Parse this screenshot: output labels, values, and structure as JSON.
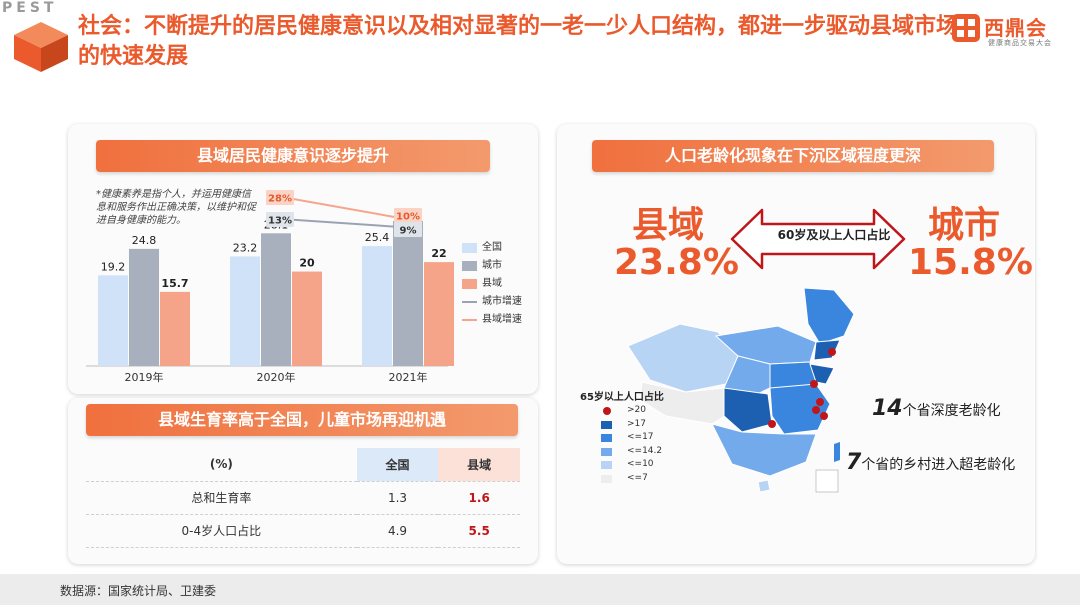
{
  "header": {
    "pest": "PEST",
    "title": "社会：不断提升的居民健康意识以及相对显著的一老一少人口结构，都进一步驱动县域市场的快速发展"
  },
  "logo": {
    "name": "西鼎会",
    "sub": "健康商品交易大会"
  },
  "health_panel": {
    "banner": "县域居民健康意识逐步提升",
    "note": "*健康素养是指个人，并运用健康信息和服务作出正确决策，以维护和促进自身健康的能力。"
  },
  "fertility_panel": {
    "banner": "县域生育率高于全国，儿童市场再迎机遇",
    "table": {
      "headers": [
        "(%)",
        "全国",
        "县域"
      ],
      "rows": [
        [
          "总和生育率",
          "1.3",
          "1.6"
        ],
        [
          "0-4岁人口占比",
          "4.9",
          "5.5"
        ]
      ]
    }
  },
  "aging_panel": {
    "banner": "人口老龄化现象在下沉区域程度更深",
    "county_label": "县域",
    "county_value": "23.8%",
    "city_label": "城市",
    "city_value": "15.8%",
    "arrow_label": "60岁及以上人口占比",
    "map_legend_title": "65岁以上人口占比",
    "map_legend": [
      {
        "label": ">20",
        "kind": "dot",
        "color": "#c0161a"
      },
      {
        "label": ">17",
        "kind": "swatch",
        "color": "#1d5fb0"
      },
      {
        "label": "<=17",
        "kind": "swatch",
        "color": "#3a86de"
      },
      {
        "label": "<=14.2",
        "kind": "swatch",
        "color": "#72aaeb"
      },
      {
        "label": "<=10",
        "kind": "swatch",
        "color": "#b8d4f5"
      },
      {
        "label": "<=7",
        "kind": "swatch",
        "color": "#ededed"
      }
    ],
    "annotation1_num": "14",
    "annotation1_text": "个省深度老龄化",
    "annotation2_num": "7",
    "annotation2_text": "个省的乡村进入超老龄化"
  },
  "chart_data": {
    "type": "bar",
    "categories": [
      "2019年",
      "2020年",
      "2021年"
    ],
    "series": [
      {
        "name": "全国",
        "values": [
          19.2,
          23.2,
          25.4
        ],
        "color": "#cfe2f7"
      },
      {
        "name": "城市",
        "values": [
          24.8,
          28.1,
          30.7
        ],
        "color": "#a7b0bc"
      },
      {
        "name": "县域",
        "values": [
          15.7,
          20.0,
          22.0
        ],
        "color": "#f5a48a"
      }
    ],
    "growth": [
      {
        "name": "城市增速",
        "values": [
          "13%",
          "9%"
        ],
        "color": "#9aa4b1"
      },
      {
        "name": "县域增速",
        "values": [
          "28%",
          "10%"
        ],
        "color": "#f6a58c"
      }
    ],
    "ylim": [
      0,
      36
    ],
    "xlabel": "",
    "ylabel": "",
    "legend_position": "right"
  },
  "footer": {
    "source": "数据源：国家统计局、卫建委"
  }
}
